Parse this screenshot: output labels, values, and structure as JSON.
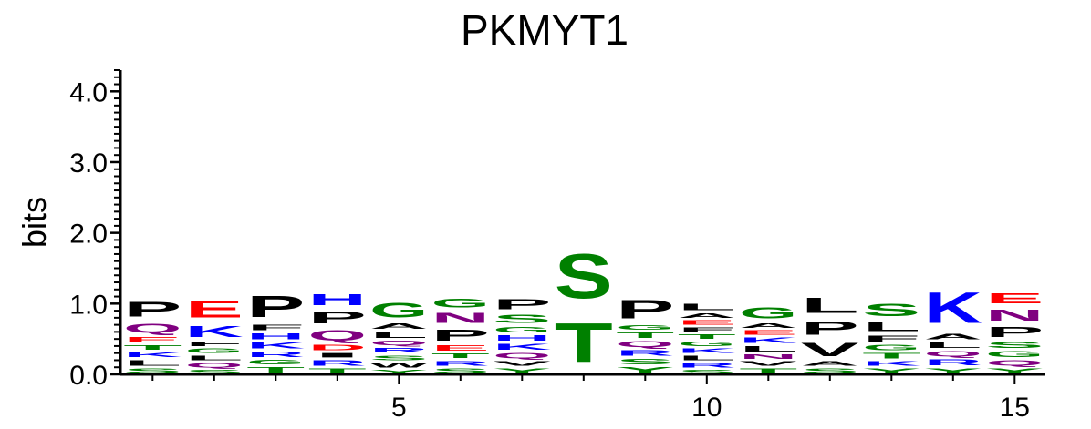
{
  "chart_data": {
    "type": "sequence-logo",
    "title": "PKMYT1",
    "ylabel": "bits",
    "xlabel": "",
    "ylim": [
      0,
      4.3
    ],
    "y_ticks": [
      "0.0",
      "1.0",
      "2.0",
      "3.0",
      "4.0"
    ],
    "x_ticks": [
      "5",
      "10",
      "15"
    ],
    "colors": {
      "hydrophobic": "#000000",
      "polar": "#008000",
      "basic": "#0000ff",
      "acidic": "#ff0000",
      "amide": "#800080"
    },
    "positions": [
      {
        "pos": 1,
        "stack": [
          {
            "aa": "S",
            "h": 0.1
          },
          {
            "aa": "L",
            "h": 0.12
          },
          {
            "aa": "K",
            "h": 0.11
          },
          {
            "aa": "T",
            "h": 0.1
          },
          {
            "aa": "E",
            "h": 0.12
          },
          {
            "aa": "Q",
            "h": 0.2
          },
          {
            "aa": "P",
            "h": 0.33
          }
        ]
      },
      {
        "pos": 2,
        "stack": [
          {
            "aa": "S",
            "h": 0.08
          },
          {
            "aa": "Q",
            "h": 0.1
          },
          {
            "aa": "L",
            "h": 0.1
          },
          {
            "aa": "G",
            "h": 0.1
          },
          {
            "aa": "F",
            "h": 0.1
          },
          {
            "aa": "K",
            "h": 0.25
          },
          {
            "aa": "E",
            "h": 0.39
          }
        ]
      },
      {
        "pos": 3,
        "stack": [
          {
            "aa": "T",
            "h": 0.12
          },
          {
            "aa": "G",
            "h": 0.1
          },
          {
            "aa": "R",
            "h": 0.12
          },
          {
            "aa": "K",
            "h": 0.13
          },
          {
            "aa": "H",
            "h": 0.13
          },
          {
            "aa": "F",
            "h": 0.12
          },
          {
            "aa": "P",
            "h": 0.48
          }
        ]
      },
      {
        "pos": 4,
        "stack": [
          {
            "aa": "T",
            "h": 0.1
          },
          {
            "aa": "R",
            "h": 0.12
          },
          {
            "aa": "I",
            "h": 0.1
          },
          {
            "aa": "D",
            "h": 0.12
          },
          {
            "aa": "Q",
            "h": 0.23
          },
          {
            "aa": "P",
            "h": 0.26
          },
          {
            "aa": "H",
            "h": 0.25
          }
        ]
      },
      {
        "pos": 5,
        "stack": [
          {
            "aa": "Y",
            "h": 0.08
          },
          {
            "aa": "W",
            "h": 0.1
          },
          {
            "aa": "S",
            "h": 0.11
          },
          {
            "aa": "R",
            "h": 0.1
          },
          {
            "aa": "Q",
            "h": 0.1
          },
          {
            "aa": "L",
            "h": 0.13
          },
          {
            "aa": "A",
            "h": 0.12
          },
          {
            "aa": "G",
            "h": 0.33
          }
        ]
      },
      {
        "pos": 6,
        "stack": [
          {
            "aa": "S",
            "h": 0.1
          },
          {
            "aa": "R",
            "h": 0.11
          },
          {
            "aa": "T",
            "h": 0.1
          },
          {
            "aa": "E",
            "h": 0.12
          },
          {
            "aa": "P",
            "h": 0.25
          },
          {
            "aa": "N",
            "h": 0.23
          },
          {
            "aa": "G",
            "h": 0.2
          }
        ]
      },
      {
        "pos": 7,
        "stack": [
          {
            "aa": "Y",
            "h": 0.1
          },
          {
            "aa": "V",
            "h": 0.1
          },
          {
            "aa": "Q",
            "h": 0.12
          },
          {
            "aa": "K",
            "h": 0.13
          },
          {
            "aa": "H",
            "h": 0.12
          },
          {
            "aa": "G",
            "h": 0.12
          },
          {
            "aa": "S",
            "h": 0.19
          },
          {
            "aa": "P",
            "h": 0.22
          }
        ]
      },
      {
        "pos": 8,
        "stack": [
          {
            "aa": "T",
            "h": 0.88
          },
          {
            "aa": "S",
            "h": 1.0
          }
        ]
      },
      {
        "pos": 9,
        "stack": [
          {
            "aa": "Y",
            "h": 0.12
          },
          {
            "aa": "S",
            "h": 0.12
          },
          {
            "aa": "R",
            "h": 0.12
          },
          {
            "aa": "Q",
            "h": 0.13
          },
          {
            "aa": "T",
            "h": 0.12
          },
          {
            "aa": "G",
            "h": 0.1
          },
          {
            "aa": "P",
            "h": 0.42
          }
        ]
      },
      {
        "pos": 10,
        "stack": [
          {
            "aa": "S",
            "h": 0.08
          },
          {
            "aa": "R",
            "h": 0.1
          },
          {
            "aa": "L",
            "h": 0.1
          },
          {
            "aa": "K",
            "h": 0.1
          },
          {
            "aa": "G",
            "h": 0.1
          },
          {
            "aa": "T",
            "h": 0.1
          },
          {
            "aa": "F",
            "h": 0.1
          },
          {
            "aa": "E",
            "h": 0.1
          },
          {
            "aa": "A",
            "h": 0.1
          },
          {
            "aa": "L",
            "h": 0.15
          }
        ]
      },
      {
        "pos": 11,
        "stack": [
          {
            "aa": "T",
            "h": 0.1
          },
          {
            "aa": "V",
            "h": 0.1
          },
          {
            "aa": "N",
            "h": 0.1
          },
          {
            "aa": "L",
            "h": 0.12
          },
          {
            "aa": "K",
            "h": 0.12
          },
          {
            "aa": "E",
            "h": 0.1
          },
          {
            "aa": "A",
            "h": 0.1
          },
          {
            "aa": "G",
            "h": 0.25
          }
        ]
      },
      {
        "pos": 12,
        "stack": [
          {
            "aa": "S",
            "h": 0.1
          },
          {
            "aa": "A",
            "h": 0.1
          },
          {
            "aa": "V",
            "h": 0.3
          },
          {
            "aa": "P",
            "h": 0.3
          },
          {
            "aa": "L",
            "h": 0.35
          }
        ]
      },
      {
        "pos": 13,
        "stack": [
          {
            "aa": "Y",
            "h": 0.1
          },
          {
            "aa": "K",
            "h": 0.1
          },
          {
            "aa": "T",
            "h": 0.12
          },
          {
            "aa": "G",
            "h": 0.12
          },
          {
            "aa": "F",
            "h": 0.13
          },
          {
            "aa": "L",
            "h": 0.2
          },
          {
            "aa": "S",
            "h": 0.28
          }
        ]
      },
      {
        "pos": 14,
        "stack": [
          {
            "aa": "Y",
            "h": 0.1
          },
          {
            "aa": "R",
            "h": 0.13
          },
          {
            "aa": "Q",
            "h": 0.12
          },
          {
            "aa": "L",
            "h": 0.12
          },
          {
            "aa": "A",
            "h": 0.12
          },
          {
            "aa": "K",
            "h": 0.7
          }
        ]
      },
      {
        "pos": 15,
        "stack": [
          {
            "aa": "Y",
            "h": 0.1
          },
          {
            "aa": "Q",
            "h": 0.12
          },
          {
            "aa": "G",
            "h": 0.13
          },
          {
            "aa": "S",
            "h": 0.13
          },
          {
            "aa": "P",
            "h": 0.23
          },
          {
            "aa": "N",
            "h": 0.25
          },
          {
            "aa": "E",
            "h": 0.22
          }
        ]
      }
    ]
  }
}
